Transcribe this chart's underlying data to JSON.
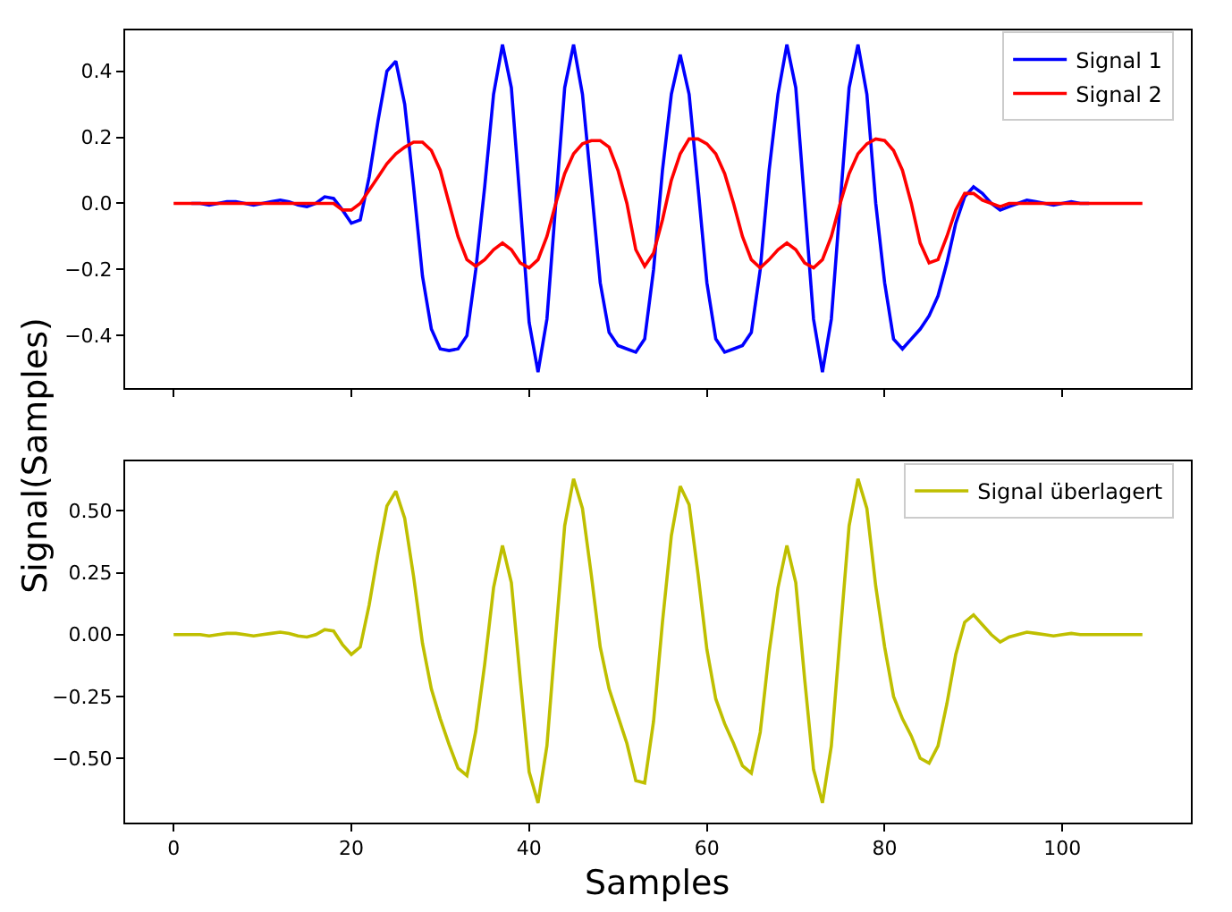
{
  "chart_data": [
    {
      "type": "line",
      "ylabel": "Signal(Samples)",
      "legend": "top right",
      "tick_labels": "y",
      "xlim": [
        -5.45,
        114.45
      ],
      "xticks": [
        0,
        20,
        40,
        60,
        80,
        100
      ],
      "ylim": [
        -0.557,
        0.524
      ],
      "yticks": [
        {
          "value": -0.4,
          "label": "−0.4"
        },
        {
          "value": -0.2,
          "label": "−0.2"
        },
        {
          "value": 0,
          "label": "0.0"
        },
        {
          "value": 0.2,
          "label": "0.2"
        },
        {
          "value": 0.4,
          "label": "0.4"
        }
      ],
      "x": [
        0,
        1,
        2,
        3,
        4,
        5,
        6,
        7,
        8,
        9,
        10,
        11,
        12,
        13,
        14,
        15,
        16,
        17,
        18,
        19,
        20,
        21,
        22,
        23,
        24,
        25,
        26,
        27,
        28,
        29,
        30,
        31,
        32,
        33,
        34,
        35,
        36,
        37,
        38,
        39,
        40,
        41,
        42,
        43,
        44,
        45,
        46,
        47,
        48,
        49,
        50,
        51,
        52,
        53,
        54,
        55,
        56,
        57,
        58,
        59,
        60,
        61,
        62,
        63,
        64,
        65,
        66,
        67,
        68,
        69,
        70,
        71,
        72,
        73,
        74,
        75,
        76,
        77,
        78,
        79,
        80,
        81,
        82,
        83,
        84,
        85,
        86,
        87,
        88,
        89,
        90,
        91,
        92,
        93,
        94,
        95,
        96,
        97,
        98,
        99,
        100,
        101,
        102,
        103,
        104,
        105,
        106,
        107,
        108,
        109
      ],
      "series": [
        {
          "name": "Signal 1",
          "color": "#0000ff",
          "values": [
            null,
            null,
            0,
            0,
            -0.005,
            0,
            0.005,
            0.005,
            0,
            -0.005,
            0,
            0.005,
            0.01,
            0.005,
            -0.005,
            -0.01,
            0,
            0.02,
            0.015,
            -0.02,
            -0.06,
            -0.05,
            0.08,
            0.25,
            0.4,
            0.43,
            0.3,
            0.05,
            -0.22,
            -0.38,
            -0.44,
            -0.445,
            -0.44,
            -0.4,
            -0.2,
            0.05,
            0.33,
            0.48,
            0.35,
            0.0,
            -0.36,
            -0.51,
            -0.35,
            0.0,
            0.35,
            0.48,
            0.33,
            0.05,
            -0.24,
            -0.39,
            -0.43,
            -0.44,
            -0.45,
            -0.41,
            -0.2,
            0.1,
            0.33,
            0.45,
            0.33,
            0.05,
            -0.24,
            -0.41,
            -0.45,
            -0.44,
            -0.43,
            -0.39,
            -0.2,
            0.1,
            0.33,
            0.48,
            0.35,
            0.0,
            -0.35,
            -0.51,
            -0.35,
            0.0,
            0.35,
            0.48,
            0.33,
            0.0,
            -0.24,
            -0.41,
            -0.44,
            -0.41,
            -0.38,
            -0.34,
            -0.28,
            -0.18,
            -0.06,
            0.02,
            0.05,
            0.03,
            0.0,
            -0.02,
            -0.01,
            0.0,
            0.01,
            0.005,
            0,
            -0.005,
            0,
            0.005,
            0,
            0,
            null,
            null,
            null,
            null,
            null,
            null
          ]
        },
        {
          "name": "Signal 2",
          "color": "#ff0000",
          "values": [
            0,
            0,
            0,
            0,
            0,
            0,
            0,
            0,
            0,
            0,
            0,
            0,
            0,
            0,
            0,
            0,
            0,
            0,
            0.0,
            -0.02,
            -0.02,
            0.0,
            0.04,
            0.08,
            0.12,
            0.15,
            0.17,
            0.185,
            0.185,
            0.16,
            0.1,
            0.0,
            -0.1,
            -0.17,
            -0.19,
            -0.17,
            -0.14,
            -0.12,
            -0.14,
            -0.18,
            -0.195,
            -0.17,
            -0.1,
            0.0,
            0.09,
            0.15,
            0.18,
            0.19,
            0.19,
            0.17,
            0.1,
            0.0,
            -0.14,
            -0.19,
            -0.15,
            -0.05,
            0.07,
            0.15,
            0.195,
            0.195,
            0.18,
            0.15,
            0.09,
            0.0,
            -0.1,
            -0.17,
            -0.195,
            -0.17,
            -0.14,
            -0.12,
            -0.14,
            -0.18,
            -0.195,
            -0.17,
            -0.1,
            0.0,
            0.09,
            0.15,
            0.18,
            0.195,
            0.19,
            0.16,
            0.1,
            0.0,
            -0.12,
            -0.18,
            -0.17,
            -0.1,
            -0.02,
            0.03,
            0.03,
            0.01,
            0.0,
            -0.01,
            0,
            0,
            0,
            0,
            0,
            0,
            0,
            0,
            0,
            0,
            0,
            0,
            0,
            0,
            0,
            0
          ]
        }
      ]
    },
    {
      "type": "line",
      "xlabel": "Samples",
      "legend": "top right",
      "xlim": [
        -5.45,
        114.45
      ],
      "xticks": [
        0,
        20,
        40,
        60,
        80,
        100
      ],
      "ylim": [
        -0.76,
        0.7
      ],
      "yticks": [
        {
          "value": -0.5,
          "label": "−0.50"
        },
        {
          "value": -0.25,
          "label": "−0.25"
        },
        {
          "value": 0,
          "label": "0.00"
        },
        {
          "value": 0.25,
          "label": "0.25"
        },
        {
          "value": 0.5,
          "label": "0.50"
        }
      ],
      "x": [
        0,
        1,
        2,
        3,
        4,
        5,
        6,
        7,
        8,
        9,
        10,
        11,
        12,
        13,
        14,
        15,
        16,
        17,
        18,
        19,
        20,
        21,
        22,
        23,
        24,
        25,
        26,
        27,
        28,
        29,
        30,
        31,
        32,
        33,
        34,
        35,
        36,
        37,
        38,
        39,
        40,
        41,
        42,
        43,
        44,
        45,
        46,
        47,
        48,
        49,
        50,
        51,
        52,
        53,
        54,
        55,
        56,
        57,
        58,
        59,
        60,
        61,
        62,
        63,
        64,
        65,
        66,
        67,
        68,
        69,
        70,
        71,
        72,
        73,
        74,
        75,
        76,
        77,
        78,
        79,
        80,
        81,
        82,
        83,
        84,
        85,
        86,
        87,
        88,
        89,
        90,
        91,
        92,
        93,
        94,
        95,
        96,
        97,
        98,
        99,
        100,
        101,
        102,
        103,
        104,
        105,
        106,
        107,
        108,
        109
      ],
      "series": [
        {
          "name": "Signal überlagert",
          "color": "#bfbf00",
          "values": [
            0,
            0,
            0,
            0,
            -0.005,
            0,
            0.005,
            0.005,
            0,
            -0.005,
            0,
            0.005,
            0.01,
            0.005,
            -0.005,
            -0.01,
            0,
            0.02,
            0.015,
            -0.04,
            -0.08,
            -0.05,
            0.12,
            0.33,
            0.52,
            0.58,
            0.47,
            0.235,
            -0.035,
            -0.22,
            -0.34,
            -0.445,
            -0.54,
            -0.57,
            -0.39,
            -0.12,
            0.19,
            0.36,
            0.21,
            -0.18,
            -0.555,
            -0.68,
            -0.45,
            0.0,
            0.44,
            0.63,
            0.51,
            0.24,
            -0.05,
            -0.22,
            -0.33,
            -0.44,
            -0.59,
            -0.6,
            -0.35,
            0.05,
            0.4,
            0.6,
            0.525,
            0.245,
            -0.06,
            -0.26,
            -0.36,
            -0.44,
            -0.53,
            -0.56,
            -0.395,
            -0.07,
            0.19,
            0.36,
            0.21,
            -0.18,
            -0.545,
            -0.68,
            -0.45,
            0.0,
            0.44,
            0.63,
            0.51,
            0.195,
            -0.05,
            -0.25,
            -0.34,
            -0.41,
            -0.5,
            -0.52,
            -0.45,
            -0.28,
            -0.08,
            0.05,
            0.08,
            0.04,
            0.0,
            -0.03,
            -0.01,
            0,
            0.01,
            0.005,
            0,
            -0.005,
            0,
            0.005,
            0,
            0,
            0,
            0,
            0,
            0,
            0,
            0
          ]
        }
      ]
    }
  ]
}
